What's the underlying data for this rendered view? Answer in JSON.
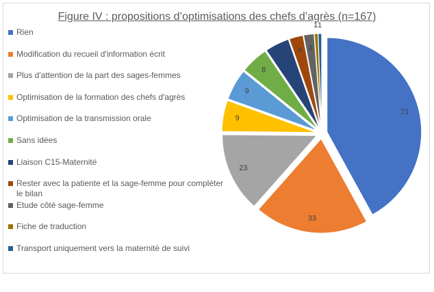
{
  "chart_data": {
    "type": "pie",
    "title": "Figure IV : propositions d’optimisations des chefs d’agrès (n=167)",
    "categories": [
      "Rien",
      "Modification du recueil d'information écrit",
      "Plus d'attention de la part des sages-femmes",
      "Optimisation de la formation des chefs d'agrès",
      "Optimisation de la transmission orale",
      "Sans idées",
      "Liaison C15-Maternité",
      "Rester avec la patiente et la sage-femme pour compléter le bilan",
      "Etude côté sage-femme",
      "Fiche de traduction",
      "Transport uniquement vers la maternité de suivi"
    ],
    "values": [
      71,
      33,
      23,
      9,
      9,
      8,
      7,
      4,
      3,
      1,
      1
    ],
    "colors": [
      "#4472c4",
      "#ed7d31",
      "#a5a5a5",
      "#ffc000",
      "#5b9bd5",
      "#70ad47",
      "#264478",
      "#9e480e",
      "#636363",
      "#997300",
      "#255e91"
    ],
    "legend": "left"
  }
}
